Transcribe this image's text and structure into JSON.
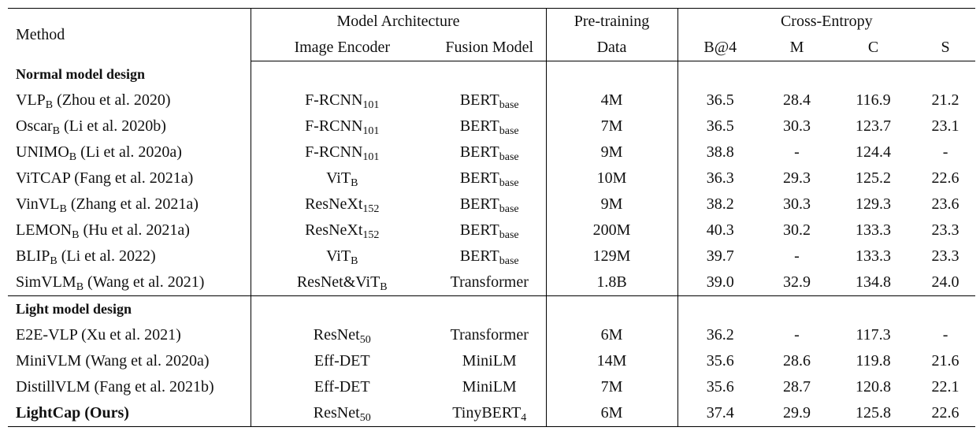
{
  "header": {
    "method": "Method",
    "model_architecture": "Model Architecture",
    "image_encoder": "Image Encoder",
    "fusion_model": "Fusion Model",
    "pretraining_1": "Pre-training",
    "pretraining_2": "Data",
    "cross_entropy": "Cross-Entropy",
    "metrics": [
      "B@4",
      "M",
      "C",
      "S"
    ]
  },
  "sections": [
    {
      "title": "Normal model design",
      "rows": [
        {
          "method": "VLP",
          "method_sub": "B",
          "cite": " (Zhou et al. 2020)",
          "enc": "F-RCNN",
          "enc_sub": "101",
          "fus": "BERT",
          "fus_sub": "base",
          "data": "4M",
          "b4": "36.5",
          "m": "28.4",
          "c": "116.9",
          "s": "21.2"
        },
        {
          "method": "Oscar",
          "method_sub": "B",
          "cite": " (Li et al. 2020b)",
          "enc": "F-RCNN",
          "enc_sub": "101",
          "fus": "BERT",
          "fus_sub": "base",
          "data": "7M",
          "b4": "36.5",
          "m": "30.3",
          "c": "123.7",
          "s": "23.1"
        },
        {
          "method": "UNIMO",
          "method_sub": "B",
          "cite": " (Li et al. 2020a)",
          "enc": "F-RCNN",
          "enc_sub": "101",
          "fus": "BERT",
          "fus_sub": "base",
          "data": "9M",
          "b4": "38.8",
          "m": "-",
          "c": "124.4",
          "s": "-"
        },
        {
          "method": "ViTCAP",
          "method_sub": "",
          "cite": " (Fang et al. 2021a)",
          "enc": "ViT",
          "enc_sub": "B",
          "fus": "BERT",
          "fus_sub": "base",
          "data": "10M",
          "b4": "36.3",
          "m": "29.3",
          "c": "125.2",
          "s": "22.6"
        },
        {
          "method": "VinVL",
          "method_sub": "B",
          "cite": " (Zhang et al. 2021a)",
          "enc": "ResNeXt",
          "enc_sub": "152",
          "fus": "BERT",
          "fus_sub": "base",
          "data": "9M",
          "b4": "38.2",
          "m": "30.3",
          "c": "129.3",
          "s": "23.6"
        },
        {
          "method": "LEMON",
          "method_sub": "B",
          "cite": " (Hu et al. 2021a)",
          "enc": "ResNeXt",
          "enc_sub": "152",
          "fus": "BERT",
          "fus_sub": "base",
          "data": "200M",
          "b4": "40.3",
          "m": "30.2",
          "c": "133.3",
          "s": "23.3"
        },
        {
          "method": "BLIP",
          "method_sub": "B",
          "cite": " (Li et al. 2022)",
          "enc": "ViT",
          "enc_sub": "B",
          "fus": "BERT",
          "fus_sub": "base",
          "data": "129M",
          "b4": "39.7",
          "m": "-",
          "c": "133.3",
          "s": "23.3"
        },
        {
          "method": "SimVLM",
          "method_sub": "B",
          "cite": " (Wang et al. 2021)",
          "enc": "ResNet&ViT",
          "enc_sub": "B",
          "fus": "Transformer",
          "fus_sub": "",
          "data": "1.8B",
          "b4": "39.0",
          "m": "32.9",
          "c": "134.8",
          "s": "24.0"
        }
      ]
    },
    {
      "title": "Light model design",
      "rows": [
        {
          "method": "E2E-VLP",
          "method_sub": "",
          "cite": " (Xu et al. 2021)",
          "enc": "ResNet",
          "enc_sub": "50",
          "fus": "Transformer",
          "fus_sub": "",
          "data": "6M",
          "b4": "36.2",
          "m": "-",
          "c": "117.3",
          "s": "-"
        },
        {
          "method": "MiniVLM",
          "method_sub": "",
          "cite": " (Wang et al. 2020a)",
          "enc": "Eff-DET",
          "enc_sub": "",
          "fus": "MiniLM",
          "fus_sub": "",
          "data": "14M",
          "b4": "35.6",
          "m": "28.6",
          "c": "119.8",
          "s": "21.6"
        },
        {
          "method": "DistillVLM",
          "method_sub": "",
          "cite": " (Fang et al. 2021b)",
          "enc": "Eff-DET",
          "enc_sub": "",
          "fus": "MiniLM",
          "fus_sub": "",
          "data": "7M",
          "b4": "35.6",
          "m": "28.7",
          "c": "120.8",
          "s": "22.1"
        },
        {
          "method": "LightCap (Ours)",
          "method_sub": "",
          "cite": "",
          "enc": "ResNet",
          "enc_sub": "50",
          "fus": "TinyBERT",
          "fus_sub": "4",
          "data": "6M",
          "b4": "37.4",
          "m": "29.9",
          "c": "125.8",
          "s": "22.6",
          "bold": true
        }
      ]
    }
  ]
}
